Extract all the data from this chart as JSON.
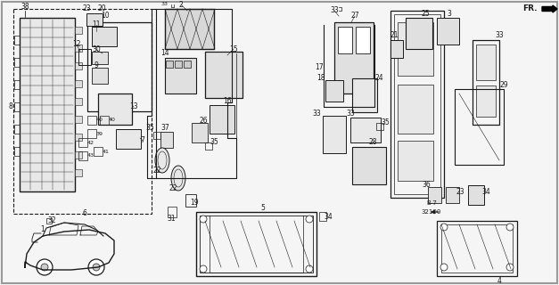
{
  "background_color": "#f0f0f0",
  "line_color": "#1a1a1a",
  "figure_width": 6.27,
  "figure_height": 3.2,
  "dpi": 100,
  "border_color": "#cccccc"
}
